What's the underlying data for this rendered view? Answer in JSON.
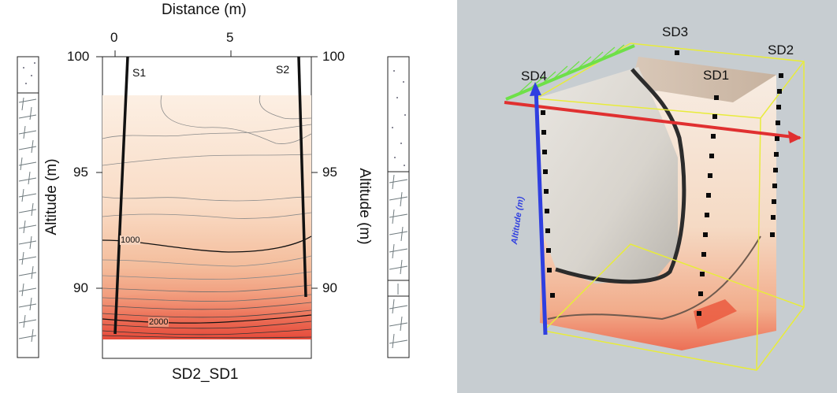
{
  "section_plot": {
    "x_axis_title": "Distance (m)",
    "x_ticks": [
      "0",
      "5"
    ],
    "y_ticks_left": [
      "100",
      "95",
      "90"
    ],
    "y_ticks_right": [
      "100",
      "95",
      "90"
    ],
    "y_axis_title_left": "Altitude (m)",
    "y_axis_title_right": "Altitude (m)",
    "profile_labels": [
      "S1",
      "S2"
    ],
    "contour_labels": [
      "1000",
      "2000"
    ],
    "section_name": "SD2_SD1",
    "colors": {
      "low": "#fbeee0",
      "mid": "#f6c9a7",
      "high": "#ec5a45"
    }
  },
  "model_3d": {
    "borehole_labels": [
      "SD3",
      "SD2",
      "SD4",
      "SD1"
    ],
    "axis_labels": {
      "vertical": "Altitude (m)"
    },
    "colors": {
      "background": "#c7cdd1",
      "frame": "#e8ec3a",
      "x_axis": "#e03030",
      "y_axis": "#2f3fe0",
      "z_axis": "#6ee048"
    }
  }
}
